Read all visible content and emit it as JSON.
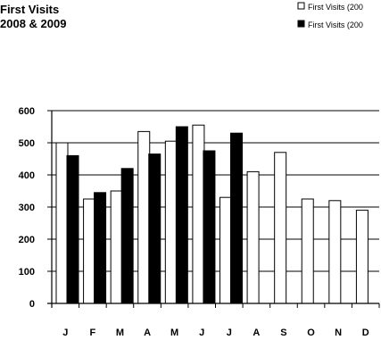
{
  "chart_data": {
    "type": "bar",
    "title_lines": [
      "First Visits",
      "2008 & 2009"
    ],
    "xlabel": "",
    "ylabel": "",
    "categories": [
      "J",
      "F",
      "M",
      "A",
      "M",
      "J",
      "J",
      "A",
      "S",
      "O",
      "N",
      "D"
    ],
    "series": [
      {
        "name": "First Visits (200",
        "color": "#ffffff",
        "values": [
          500,
          325,
          350,
          535,
          505,
          555,
          330,
          410,
          470,
          325,
          320,
          290
        ]
      },
      {
        "name": "First Visits (200",
        "color": "#000000",
        "values": [
          460,
          345,
          420,
          465,
          550,
          475,
          530,
          null,
          null,
          null,
          null,
          null
        ]
      }
    ],
    "ylim": [
      0,
      600
    ],
    "yticks": [
      0,
      100,
      200,
      300,
      400,
      500,
      600
    ],
    "grid": true,
    "legend_position": "top-right"
  }
}
